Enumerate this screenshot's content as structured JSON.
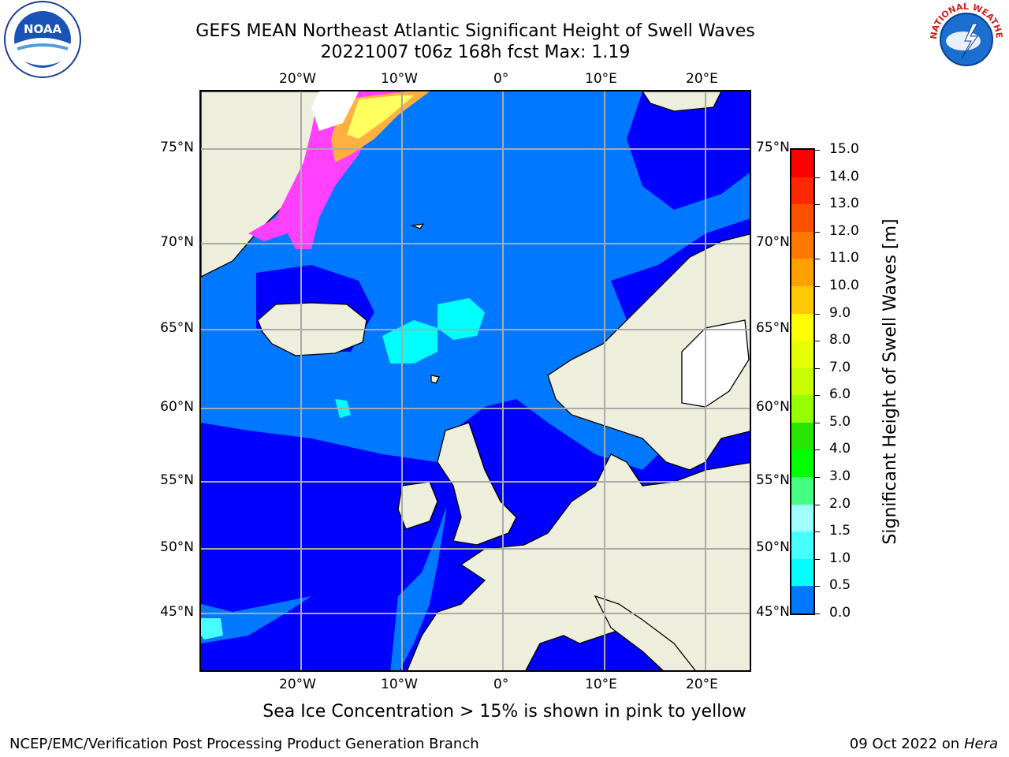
{
  "title_line1": "GEFS MEAN Northeast Atlantic Significant Height of Swell Waves",
  "title_line2": "20221007 t06z 168h fcst   Max: 1.19",
  "map": {
    "lon_ticks": [
      "20°W",
      "10°W",
      "0°",
      "10°E",
      "20°E"
    ],
    "lat_ticks": [
      "75°N",
      "70°N",
      "65°N",
      "60°N",
      "55°N",
      "50°N",
      "45°N"
    ],
    "colors": {
      "land": "#eeeedc",
      "ocean_low": "#0000ff",
      "ocean_mid": "#0078ff",
      "ocean_high": "#00ffff",
      "ocean_cyan2": "#46ffff",
      "ice_pink": "#ff40ff",
      "ice_orange": "#ffb040",
      "ice_yellow": "#ffff60",
      "grid": "#aaaaaa"
    }
  },
  "colorbar": {
    "title": "Significant Height of Swell Waves [m]",
    "labels": [
      "15.0",
      "14.0",
      "13.0",
      "12.0",
      "11.0",
      "10.0",
      "9.0",
      "8.0",
      "7.0",
      "6.0",
      "5.0",
      "4.0",
      "3.0",
      "2.0",
      "1.5",
      "1.0",
      "0.5",
      "0.0"
    ],
    "colors": [
      "#ff0000",
      "#ff2800",
      "#ff5000",
      "#ff7800",
      "#ffa000",
      "#ffc800",
      "#ffff00",
      "#e6ff00",
      "#c8ff00",
      "#96ff00",
      "#28e600",
      "#00ff00",
      "#46ff82",
      "#a0ffff",
      "#46ffff",
      "#00ffff",
      "#0078ff",
      "#0000ff"
    ]
  },
  "note": "Sea Ice Concentration > 15% is shown in pink to yellow",
  "footer": {
    "left": "NCEP/EMC/Verification Post Processing Product Generation Branch",
    "right_prefix": "09 Oct 2022 on ",
    "right_host": "Hera"
  },
  "logos": {
    "noaa_text": "NOAA",
    "nws_text": "NATIONAL WEATHER SERVICE"
  }
}
